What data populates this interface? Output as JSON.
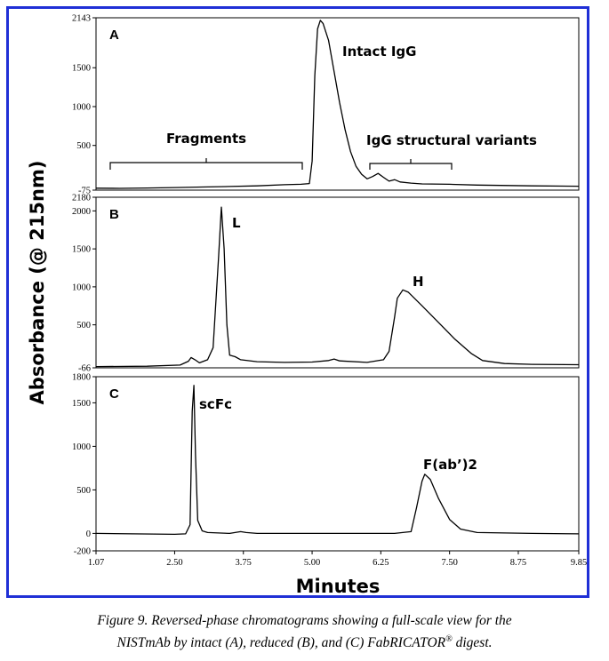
{
  "figure": {
    "caption_line1": "Figure 9.  Reversed-phase chromatograms showing a full-scale view for the",
    "caption_line2_pre": "NISTmAb by intact (A), reduced (B), and (C) FabRICATOR",
    "caption_sup": "®",
    "caption_line2_post": " digest.",
    "frame_color": "#1f2fd6"
  },
  "chart_data": {
    "type": "line",
    "ylabel": "Absorbance (@ 215nm)",
    "xlabel": "Minutes",
    "xlim": [
      1.07,
      9.85
    ],
    "x_ticks": [
      "1.07",
      "2.50",
      "3.75",
      "5.00",
      "6.25",
      "7.50",
      "8.75",
      "9.85"
    ],
    "panels": [
      {
        "label": "A",
        "ylim": [
          -75,
          2143
        ],
        "y_ticks": [
          "2143",
          "1500",
          "1000",
          "500",
          "-75"
        ],
        "annotations": [
          "Intact IgG",
          "Fragments",
          "IgG structural variants"
        ],
        "trace": [
          [
            1.07,
            -50
          ],
          [
            1.5,
            -52
          ],
          [
            2.0,
            -48
          ],
          [
            2.5,
            -42
          ],
          [
            3.0,
            -35
          ],
          [
            3.5,
            -28
          ],
          [
            4.0,
            -20
          ],
          [
            4.5,
            -5
          ],
          [
            4.8,
            0
          ],
          [
            4.95,
            10
          ],
          [
            5.0,
            300
          ],
          [
            5.05,
            1400
          ],
          [
            5.1,
            2000
          ],
          [
            5.15,
            2110
          ],
          [
            5.2,
            2070
          ],
          [
            5.3,
            1850
          ],
          [
            5.4,
            1450
          ],
          [
            5.5,
            1050
          ],
          [
            5.6,
            700
          ],
          [
            5.7,
            420
          ],
          [
            5.8,
            230
          ],
          [
            5.9,
            130
          ],
          [
            6.0,
            70
          ],
          [
            6.1,
            100
          ],
          [
            6.2,
            140
          ],
          [
            6.3,
            90
          ],
          [
            6.4,
            40
          ],
          [
            6.5,
            60
          ],
          [
            6.6,
            30
          ],
          [
            6.8,
            15
          ],
          [
            7.0,
            5
          ],
          [
            7.5,
            0
          ],
          [
            8.0,
            -10
          ],
          [
            9.0,
            -20
          ],
          [
            9.85,
            -25
          ]
        ]
      },
      {
        "label": "B",
        "ylim": [
          -66,
          2180
        ],
        "y_ticks": [
          "2180",
          "2000",
          "1500",
          "1000",
          "500",
          "-66"
        ],
        "annotations": [
          "L",
          "H"
        ],
        "trace": [
          [
            1.07,
            -50
          ],
          [
            2.0,
            -45
          ],
          [
            2.6,
            -30
          ],
          [
            2.75,
            20
          ],
          [
            2.8,
            70
          ],
          [
            2.87,
            40
          ],
          [
            2.95,
            0
          ],
          [
            3.1,
            40
          ],
          [
            3.2,
            200
          ],
          [
            3.3,
            1400
          ],
          [
            3.35,
            2050
          ],
          [
            3.4,
            1500
          ],
          [
            3.45,
            500
          ],
          [
            3.5,
            100
          ],
          [
            3.6,
            80
          ],
          [
            3.7,
            40
          ],
          [
            4.0,
            15
          ],
          [
            4.5,
            5
          ],
          [
            5.0,
            10
          ],
          [
            5.3,
            30
          ],
          [
            5.4,
            50
          ],
          [
            5.5,
            25
          ],
          [
            6.0,
            5
          ],
          [
            6.3,
            40
          ],
          [
            6.4,
            150
          ],
          [
            6.5,
            600
          ],
          [
            6.55,
            850
          ],
          [
            6.65,
            960
          ],
          [
            6.75,
            930
          ],
          [
            7.0,
            750
          ],
          [
            7.3,
            530
          ],
          [
            7.6,
            310
          ],
          [
            7.9,
            120
          ],
          [
            8.1,
            30
          ],
          [
            8.5,
            -10
          ],
          [
            9.0,
            -20
          ],
          [
            9.85,
            -25
          ]
        ]
      },
      {
        "label": "C",
        "ylim": [
          -200,
          1800
        ],
        "y_ticks": [
          "1800",
          "1500",
          "1000",
          "500",
          "0",
          "-200"
        ],
        "annotations": [
          "scFc",
          "F(ab’)2"
        ],
        "trace": [
          [
            1.07,
            0
          ],
          [
            2.5,
            -10
          ],
          [
            2.7,
            -5
          ],
          [
            2.78,
            100
          ],
          [
            2.82,
            1400
          ],
          [
            2.85,
            1700
          ],
          [
            2.88,
            900
          ],
          [
            2.92,
            150
          ],
          [
            3.0,
            30
          ],
          [
            3.1,
            10
          ],
          [
            3.5,
            0
          ],
          [
            3.7,
            20
          ],
          [
            3.8,
            10
          ],
          [
            4.0,
            0
          ],
          [
            5.0,
            0
          ],
          [
            6.0,
            0
          ],
          [
            6.5,
            0
          ],
          [
            6.8,
            20
          ],
          [
            6.9,
            300
          ],
          [
            7.0,
            600
          ],
          [
            7.05,
            680
          ],
          [
            7.15,
            620
          ],
          [
            7.3,
            400
          ],
          [
            7.5,
            160
          ],
          [
            7.7,
            50
          ],
          [
            8.0,
            10
          ],
          [
            9.0,
            0
          ],
          [
            9.85,
            -5
          ]
        ]
      }
    ]
  }
}
